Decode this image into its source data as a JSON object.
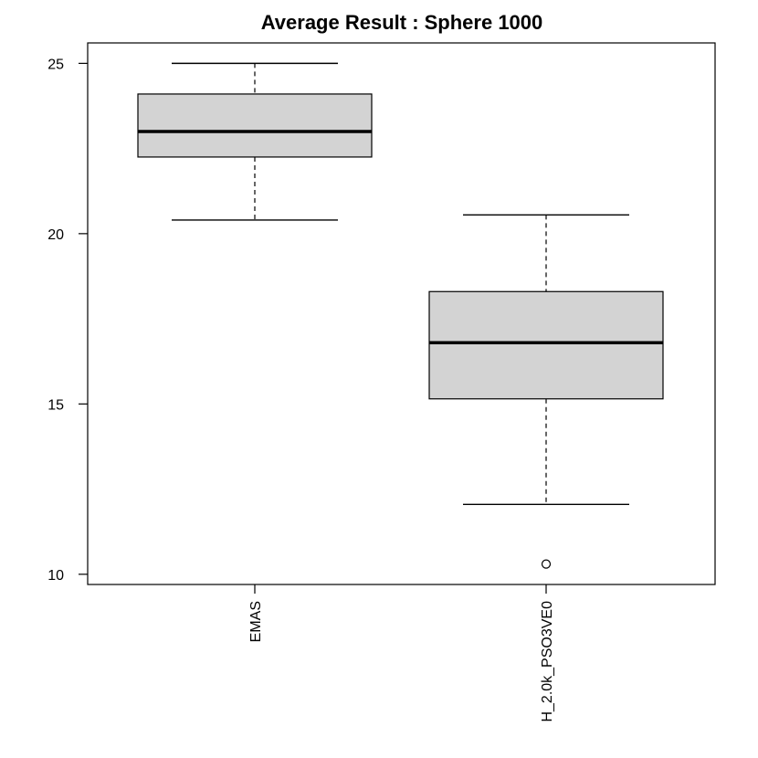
{
  "chart_data": {
    "type": "boxplot",
    "title": "Average Result : Sphere 1000",
    "xlabel": "",
    "ylabel": "",
    "ylim": [
      9.7,
      25.6
    ],
    "yticks": [
      10,
      15,
      20,
      25
    ],
    "grid": false,
    "legend": "none",
    "box_fill": "#d3d3d3",
    "categories": [
      "EMAS",
      "H_2.0k_PSO3VE0"
    ],
    "boxes": [
      {
        "name": "EMAS",
        "whisker_low": 20.4,
        "q1": 22.25,
        "median": 23.0,
        "q3": 24.1,
        "whisker_high": 25.0,
        "outliers": []
      },
      {
        "name": "H_2.0k_PSO3VE0",
        "whisker_low": 12.05,
        "q1": 15.15,
        "median": 16.8,
        "q3": 18.3,
        "whisker_high": 20.55,
        "outliers": [
          10.3
        ]
      }
    ]
  }
}
